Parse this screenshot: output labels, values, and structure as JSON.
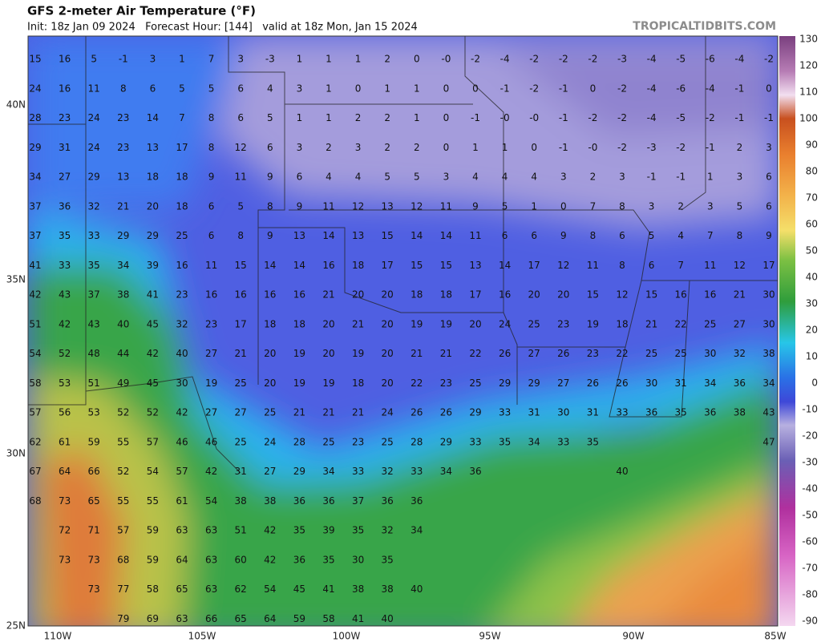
{
  "header": {
    "title": "GFS 2-meter Air Temperature (°F)",
    "subtitle": "Init: 18z Jan 09 2024   Forecast Hour: [144]   valid at 18z Mon, Jan 15 2024",
    "watermark": "TROPICALTIDBITS.COM"
  },
  "map": {
    "lat_labels": [
      "40N",
      "35N",
      "30N",
      "25N"
    ],
    "lon_labels": [
      "110W",
      "105W",
      "100W",
      "95W",
      "90W",
      "85W"
    ],
    "grid": [
      [
        "15",
        "16",
        "5",
        "-1",
        "3",
        "1",
        "7",
        "3",
        "-3",
        "1",
        "1",
        "1",
        "2",
        "0",
        "-0",
        "-2",
        "-4",
        "-2",
        "-2",
        "-2",
        "-3",
        "-4",
        "-5",
        "-6",
        "-4",
        "-2"
      ],
      [
        "24",
        "16",
        "11",
        "8",
        "6",
        "5",
        "5",
        "6",
        "4",
        "3",
        "1",
        "0",
        "1",
        "1",
        "0",
        "0",
        "-1",
        "-2",
        "-1",
        "0",
        "-2",
        "-4",
        "-6",
        "-4",
        "-1",
        "0"
      ],
      [
        "28",
        "23",
        "24",
        "23",
        "14",
        "7",
        "8",
        "6",
        "5",
        "1",
        "1",
        "2",
        "2",
        "1",
        "0",
        "-1",
        "-0",
        "-0",
        "-1",
        "-2",
        "-2",
        "-4",
        "-5",
        "-2",
        "-1",
        "-1"
      ],
      [
        "29",
        "31",
        "24",
        "23",
        "13",
        "17",
        "8",
        "12",
        "6",
        "3",
        "2",
        "3",
        "2",
        "2",
        "0",
        "1",
        "1",
        "0",
        "-1",
        "-0",
        "-2",
        "-3",
        "-2",
        "-1",
        "2",
        "3"
      ],
      [
        "34",
        "27",
        "29",
        "13",
        "18",
        "18",
        "9",
        "11",
        "9",
        "6",
        "4",
        "4",
        "5",
        "5",
        "3",
        "4",
        "4",
        "4",
        "3",
        "2",
        "3",
        "-1",
        "-1",
        "1",
        "3",
        "6"
      ],
      [
        "37",
        "36",
        "32",
        "21",
        "20",
        "18",
        "6",
        "5",
        "8",
        "9",
        "11",
        "12",
        "13",
        "12",
        "11",
        "9",
        "5",
        "1",
        "0",
        "7",
        "8",
        "3",
        "2",
        "3",
        "5",
        "6"
      ],
      [
        "37",
        "35",
        "33",
        "29",
        "29",
        "25",
        "6",
        "8",
        "9",
        "13",
        "14",
        "13",
        "15",
        "14",
        "14",
        "11",
        "6",
        "6",
        "9",
        "8",
        "6",
        "5",
        "4",
        "7",
        "8",
        "9"
      ],
      [
        "41",
        "33",
        "35",
        "34",
        "39",
        "16",
        "11",
        "15",
        "14",
        "14",
        "16",
        "18",
        "17",
        "15",
        "15",
        "13",
        "14",
        "17",
        "12",
        "11",
        "8",
        "6",
        "7",
        "11",
        "12",
        "17"
      ],
      [
        "42",
        "43",
        "37",
        "38",
        "41",
        "23",
        "16",
        "16",
        "16",
        "16",
        "21",
        "20",
        "20",
        "18",
        "18",
        "17",
        "16",
        "20",
        "20",
        "15",
        "12",
        "15",
        "16",
        "16",
        "21",
        "30"
      ],
      [
        "51",
        "42",
        "43",
        "40",
        "45",
        "32",
        "23",
        "17",
        "18",
        "18",
        "20",
        "21",
        "20",
        "19",
        "19",
        "20",
        "24",
        "25",
        "23",
        "19",
        "18",
        "21",
        "22",
        "25",
        "27",
        "30"
      ],
      [
        "54",
        "52",
        "48",
        "44",
        "42",
        "40",
        "27",
        "21",
        "20",
        "19",
        "20",
        "19",
        "20",
        "21",
        "21",
        "22",
        "26",
        "27",
        "26",
        "23",
        "22",
        "25",
        "25",
        "30",
        "32",
        "38"
      ],
      [
        "58",
        "53",
        "51",
        "49",
        "45",
        "30",
        "19",
        "25",
        "20",
        "19",
        "19",
        "18",
        "20",
        "22",
        "23",
        "25",
        "29",
        "29",
        "27",
        "26",
        "26",
        "30",
        "31",
        "34",
        "36",
        "34"
      ],
      [
        "57",
        "56",
        "53",
        "52",
        "52",
        "42",
        "27",
        "27",
        "25",
        "21",
        "21",
        "21",
        "24",
        "26",
        "26",
        "29",
        "33",
        "31",
        "30",
        "31",
        "33",
        "36",
        "35",
        "36",
        "38",
        "43"
      ],
      [
        "62",
        "61",
        "59",
        "55",
        "57",
        "46",
        "46",
        "25",
        "24",
        "28",
        "25",
        "23",
        "25",
        "28",
        "29",
        "33",
        "35",
        "34",
        "33",
        "35",
        null,
        null,
        null,
        null,
        null,
        "47"
      ],
      [
        "67",
        "64",
        "66",
        "52",
        "54",
        "57",
        "42",
        "31",
        "27",
        "29",
        "34",
        "33",
        "32",
        "33",
        "34",
        "36",
        null,
        null,
        null,
        null,
        "40"
      ],
      [
        "68",
        "73",
        "65",
        "55",
        "55",
        "61",
        "54",
        "38",
        "38",
        "36",
        "36",
        "37",
        "36",
        "36"
      ],
      [
        null,
        "72",
        "71",
        "57",
        "59",
        "63",
        "63",
        "51",
        "42",
        "35",
        "39",
        "35",
        "32",
        "34"
      ],
      [
        null,
        "73",
        "73",
        "68",
        "59",
        "64",
        "63",
        "60",
        "42",
        "36",
        "35",
        "30",
        "35"
      ],
      [
        null,
        null,
        "73",
        "77",
        "58",
        "65",
        "63",
        "62",
        "54",
        "45",
        "41",
        "38",
        "38",
        "40"
      ],
      [
        null,
        null,
        null,
        "79",
        "69",
        "63",
        "66",
        "65",
        "64",
        "59",
        "58",
        "41",
        "40"
      ]
    ]
  },
  "colorbar": {
    "labels": [
      130,
      120,
      110,
      100,
      90,
      80,
      70,
      60,
      50,
      40,
      30,
      20,
      10,
      0,
      -10,
      -20,
      -30,
      -40,
      -50,
      -60,
      -70,
      -80,
      -90
    ]
  }
}
